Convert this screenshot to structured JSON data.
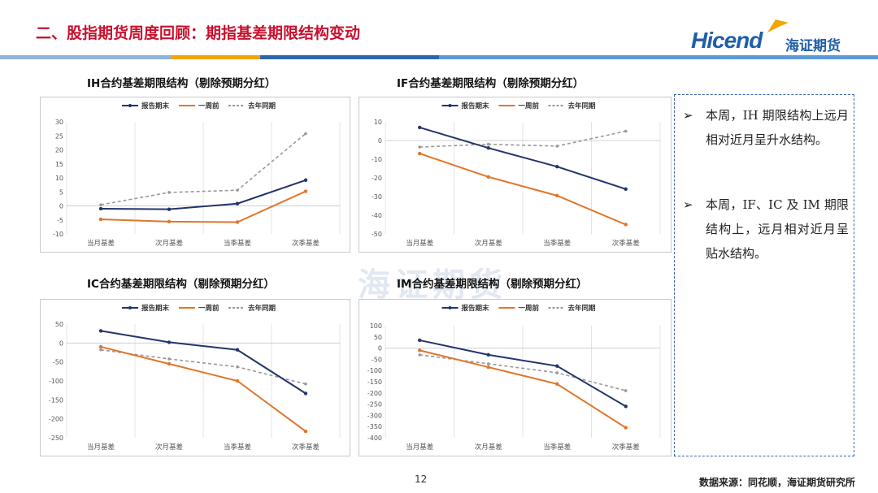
{
  "header": {
    "title": "二、股指期货周度回顾：期指基差期限结构变动",
    "logo_en": "Hicend",
    "logo_cn": "海证期货"
  },
  "colors": {
    "title": "#c8102e",
    "stripe_orange": "#f0a500",
    "stripe_blue": "#2a67b0",
    "stripe_light": "#5b9bd5"
  },
  "watermark": "海证期货",
  "legend": [
    "报告期末",
    "一周前",
    "去年同期"
  ],
  "series_colors": [
    "#22346b",
    "#e0762a",
    "#999999"
  ],
  "chart_data": [
    {
      "id": "ih",
      "type": "line",
      "title": "IH合约基差期限结构（剔除预期分红）",
      "categories": [
        "当月基差",
        "次月基差",
        "当季基差",
        "次季基差"
      ],
      "ylim": [
        -10,
        30
      ],
      "yticks": [
        -10,
        -5,
        0,
        5,
        10,
        15,
        20,
        25,
        30
      ],
      "series": [
        {
          "name": "报告期末",
          "values": [
            -1,
            -1.2,
            0.8,
            9.2
          ]
        },
        {
          "name": "一周前",
          "values": [
            -4.8,
            -5.6,
            -5.8,
            5.2
          ]
        },
        {
          "name": "去年同期",
          "values": [
            0.4,
            4.8,
            5.6,
            25.8
          ]
        }
      ]
    },
    {
      "id": "if",
      "type": "line",
      "title": "IF合约基差期限结构（剔除预期分红）",
      "categories": [
        "当月基差",
        "次月基差",
        "当季基差",
        "次季基差"
      ],
      "ylim": [
        -50,
        10
      ],
      "yticks": [
        -50,
        -40,
        -30,
        -20,
        -10,
        0,
        10
      ],
      "series": [
        {
          "name": "报告期末",
          "values": [
            7,
            -4,
            -14,
            -26
          ]
        },
        {
          "name": "一周前",
          "values": [
            -7,
            -19.5,
            -29.5,
            -45
          ]
        },
        {
          "name": "去年同期",
          "values": [
            -3.5,
            -2,
            -3,
            5
          ]
        }
      ]
    },
    {
      "id": "ic",
      "type": "line",
      "title": "IC合约基差期限结构（剔除预期分红）",
      "categories": [
        "当月基差",
        "次月基差",
        "当季基差",
        "次季基差"
      ],
      "ylim": [
        -250,
        50
      ],
      "yticks": [
        -250,
        -200,
        -150,
        -100,
        -50,
        0,
        50
      ],
      "series": [
        {
          "name": "报告期末",
          "values": [
            32,
            2,
            -18,
            -133
          ]
        },
        {
          "name": "一周前",
          "values": [
            -10,
            -55,
            -100,
            -233
          ]
        },
        {
          "name": "去年同期",
          "values": [
            -18,
            -42,
            -63,
            -108
          ]
        }
      ]
    },
    {
      "id": "im",
      "type": "line",
      "title": "IM合约基差期限结构（剔除预期分红）",
      "categories": [
        "当月基差",
        "次月基差",
        "当季基差",
        "次季基差"
      ],
      "ylim": [
        -400,
        100
      ],
      "yticks": [
        -400,
        -350,
        -300,
        -250,
        -200,
        -150,
        -100,
        -50,
        0,
        50,
        100
      ],
      "series": [
        {
          "name": "报告期末",
          "values": [
            35,
            -30,
            -80,
            -260
          ]
        },
        {
          "name": "一周前",
          "values": [
            -10,
            -85,
            -160,
            -355
          ]
        },
        {
          "name": "去年同期",
          "values": [
            -30,
            -70,
            -110,
            -190
          ]
        }
      ]
    }
  ],
  "notes": [
    "本周，IH 期限结构上远月相对近月呈升水结构。",
    "本周，IF、IC 及 IM 期限结构上，远月相对近月呈贴水结构。"
  ],
  "footer": {
    "page": "12",
    "source": "数据来源：同花顺，海证期货研究所"
  }
}
